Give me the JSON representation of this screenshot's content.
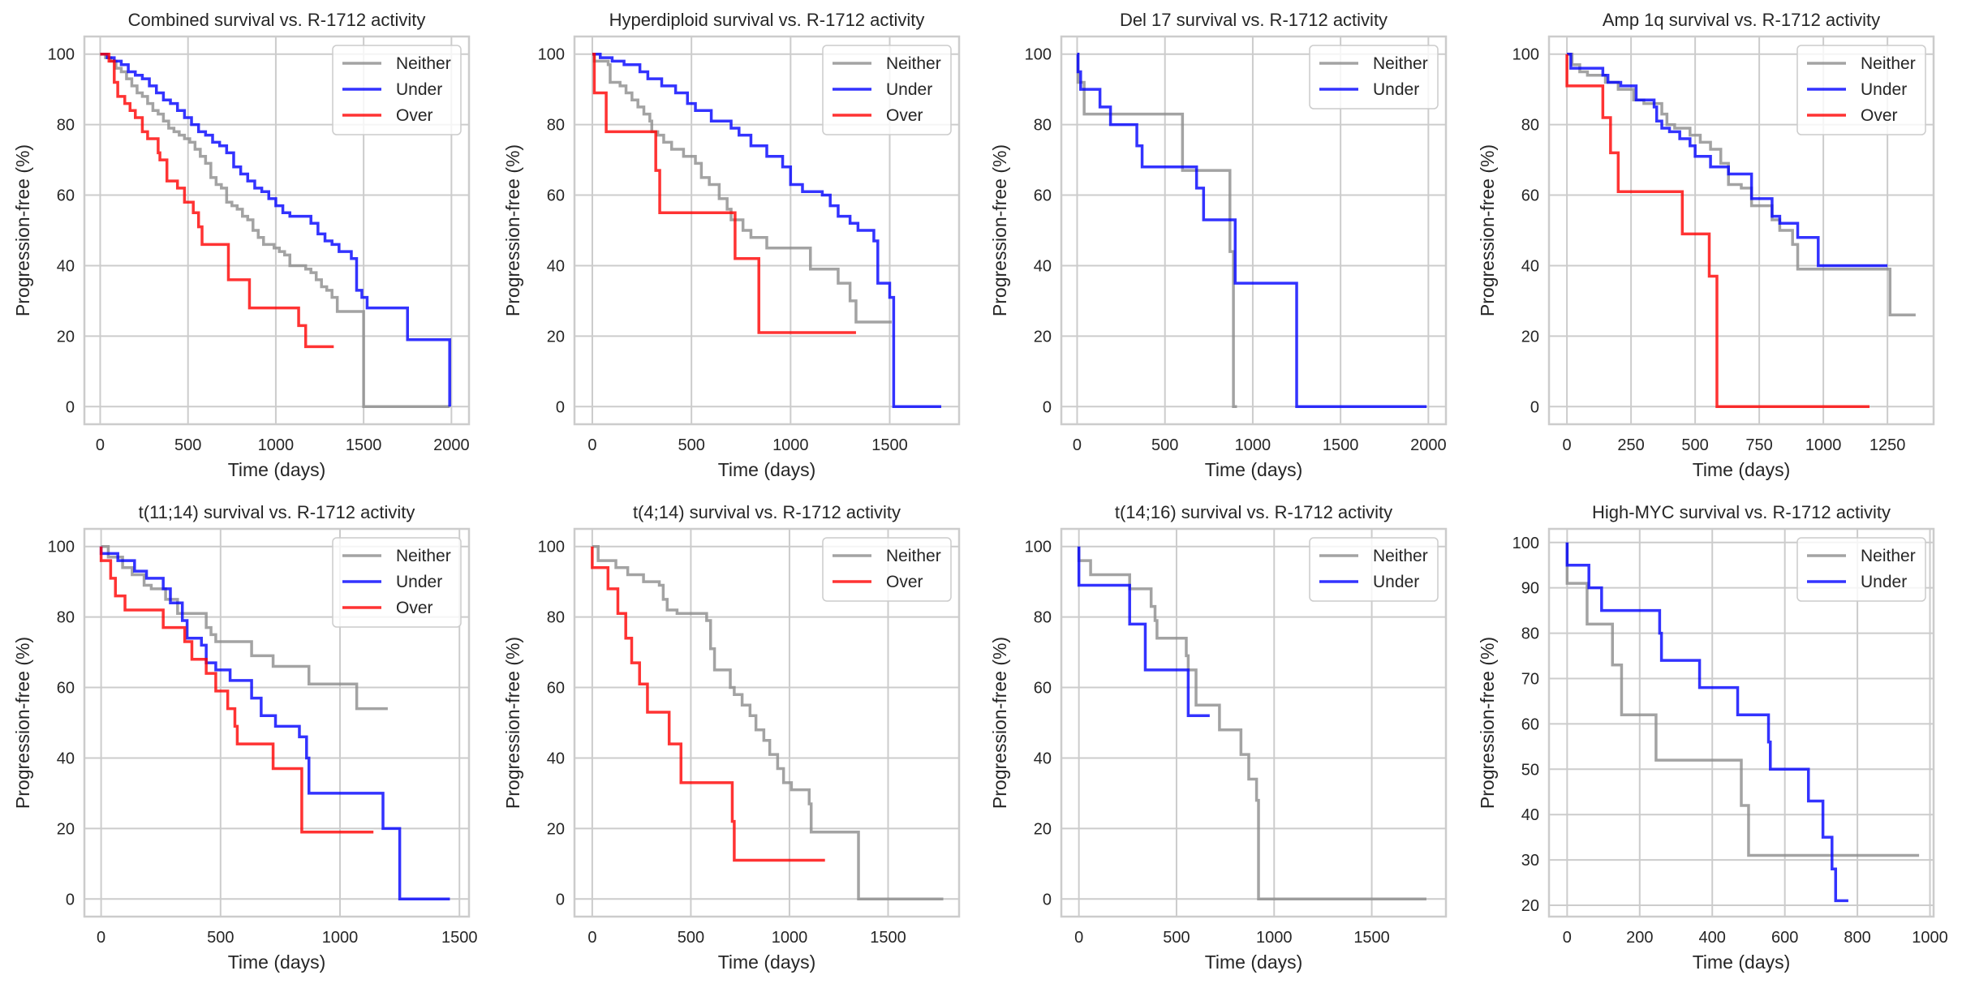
{
  "figure": {
    "colors": {
      "Neither": "#8c8c8c",
      "Under": "#0000ff",
      "Over": "#ff0000"
    }
  },
  "chart_data": [
    {
      "type": "line",
      "step": true,
      "title": "Combined survival vs. R-1712 activity",
      "xlabel": "Time (days)",
      "ylabel": "Progression-free (%)",
      "xlim": [
        -90,
        2100
      ],
      "ylim": [
        -5,
        105
      ],
      "xticks": [
        0,
        500,
        1000,
        1500,
        2000
      ],
      "yticks": [
        0,
        20,
        40,
        60,
        80,
        100
      ],
      "grid": true,
      "legend": "top-right",
      "series": [
        {
          "name": "Neither",
          "x": [
            0,
            30,
            60,
            90,
            120,
            150,
            180,
            210,
            240,
            270,
            300,
            330,
            360,
            390,
            420,
            450,
            480,
            510,
            540,
            570,
            600,
            630,
            660,
            690,
            720,
            750,
            780,
            810,
            840,
            870,
            900,
            930,
            960,
            990,
            1020,
            1050,
            1080,
            1110,
            1140,
            1170,
            1200,
            1230,
            1260,
            1290,
            1320,
            1350,
            1500,
            1990
          ],
          "y": [
            100,
            99,
            98,
            96,
            95,
            93,
            91,
            89,
            88,
            86,
            84,
            83,
            81,
            79,
            78,
            77,
            76,
            75,
            73,
            71,
            69,
            65,
            63,
            62,
            58,
            57,
            56,
            54,
            53,
            50,
            48,
            46,
            46,
            45,
            44,
            43,
            40,
            40,
            40,
            39,
            38,
            36,
            34,
            33,
            31,
            27,
            0,
            0
          ]
        },
        {
          "name": "Under",
          "x": [
            0,
            40,
            80,
            120,
            160,
            200,
            240,
            280,
            320,
            360,
            400,
            440,
            480,
            520,
            560,
            600,
            640,
            680,
            720,
            760,
            800,
            840,
            880,
            920,
            960,
            1000,
            1040,
            1080,
            1120,
            1160,
            1200,
            1240,
            1280,
            1320,
            1360,
            1400,
            1430,
            1460,
            1490,
            1520,
            1750,
            1990
          ],
          "y": [
            100,
            99,
            98,
            97,
            95,
            94,
            93,
            91,
            89,
            87,
            86,
            84,
            82,
            80,
            78,
            77,
            75,
            74,
            72,
            68,
            66,
            64,
            62,
            61,
            59,
            57,
            55,
            54,
            54,
            54,
            52,
            49,
            47,
            46,
            44,
            44,
            42,
            33,
            31,
            28,
            19,
            0
          ]
        },
        {
          "name": "Over",
          "x": [
            0,
            50,
            80,
            100,
            140,
            170,
            200,
            240,
            270,
            330,
            340,
            380,
            440,
            480,
            530,
            560,
            580,
            720,
            730,
            840,
            850,
            1130,
            1170,
            1330
          ],
          "y": [
            100,
            98,
            92,
            88,
            86,
            84,
            82,
            78,
            76,
            72,
            70,
            64,
            62,
            58,
            55,
            51,
            46,
            46,
            36,
            36,
            28,
            23,
            17,
            17
          ]
        }
      ]
    },
    {
      "type": "line",
      "step": true,
      "title": "Hyperdiploid survival vs. R-1712 activity",
      "xlabel": "Time (days)",
      "ylabel": "Progression-free (%)",
      "xlim": [
        -90,
        1850
      ],
      "ylim": [
        -5,
        105
      ],
      "xticks": [
        0,
        500,
        1000,
        1500
      ],
      "yticks": [
        0,
        20,
        40,
        60,
        80,
        100
      ],
      "grid": true,
      "legend": "top-right",
      "series": [
        {
          "name": "Neither",
          "x": [
            0,
            10,
            80,
            90,
            140,
            170,
            200,
            230,
            260,
            290,
            300,
            330,
            360,
            400,
            460,
            520,
            550,
            590,
            640,
            680,
            700,
            760,
            800,
            880,
            1100,
            1240,
            1300,
            1330,
            1510
          ],
          "y": [
            100,
            98,
            97,
            92,
            91,
            89,
            87,
            85,
            83,
            81,
            78,
            77,
            75,
            73,
            71,
            69,
            65,
            63,
            59,
            56,
            53,
            50,
            48,
            45,
            39,
            35,
            30,
            24,
            24
          ]
        },
        {
          "name": "Under",
          "x": [
            0,
            40,
            100,
            160,
            240,
            280,
            350,
            420,
            480,
            520,
            600,
            700,
            740,
            800,
            880,
            960,
            1000,
            1060,
            1160,
            1200,
            1240,
            1300,
            1340,
            1420,
            1440,
            1500,
            1520,
            1760
          ],
          "y": [
            100,
            99,
            98,
            97,
            95,
            93,
            91,
            89,
            86,
            84,
            81,
            79,
            77,
            74,
            71,
            68,
            63,
            61,
            60,
            57,
            54,
            52,
            50,
            47,
            35,
            31,
            0,
            0
          ]
        },
        {
          "name": "Over",
          "x": [
            0,
            10,
            70,
            320,
            340,
            720,
            840,
            1330
          ],
          "y": [
            100,
            89,
            78,
            67,
            55,
            42,
            21,
            21
          ]
        }
      ]
    },
    {
      "type": "line",
      "step": true,
      "title": "Del 17 survival vs. R-1712 activity",
      "xlabel": "Time (days)",
      "ylabel": "Progression-free (%)",
      "xlim": [
        -90,
        2100
      ],
      "ylim": [
        -5,
        105
      ],
      "xticks": [
        0,
        500,
        1000,
        1500,
        2000
      ],
      "yticks": [
        0,
        20,
        40,
        60,
        80,
        100
      ],
      "grid": true,
      "legend": "top-right",
      "series": [
        {
          "name": "Neither",
          "x": [
            0,
            5,
            40,
            600,
            870,
            890,
            910
          ],
          "y": [
            100,
            92,
            83,
            67,
            44,
            0,
            0
          ]
        },
        {
          "name": "Under",
          "x": [
            0,
            5,
            20,
            130,
            190,
            340,
            370,
            680,
            720,
            890,
            900,
            1250,
            1990
          ],
          "y": [
            100,
            95,
            90,
            85,
            80,
            74,
            68,
            62,
            53,
            53,
            35,
            0,
            0
          ]
        }
      ]
    },
    {
      "type": "line",
      "step": true,
      "title": "Amp 1q survival vs. R-1712 activity",
      "xlabel": "Time (days)",
      "ylabel": "Progression-free (%)",
      "xlim": [
        -70,
        1430
      ],
      "ylim": [
        -5,
        105
      ],
      "xticks": [
        0,
        250,
        500,
        750,
        1000,
        1250
      ],
      "yticks": [
        0,
        20,
        40,
        60,
        80,
        100
      ],
      "grid": true,
      "legend": "top-right",
      "series": [
        {
          "name": "Neither",
          "x": [
            0,
            20,
            50,
            80,
            150,
            200,
            260,
            300,
            370,
            390,
            420,
            480,
            520,
            560,
            600,
            630,
            680,
            720,
            800,
            830,
            880,
            900,
            1260,
            1360
          ],
          "y": [
            100,
            97,
            95,
            94,
            92,
            90,
            87,
            86,
            83,
            80,
            79,
            77,
            75,
            73,
            69,
            63,
            62,
            57,
            53,
            50,
            46,
            39,
            26,
            26
          ]
        },
        {
          "name": "Under",
          "x": [
            0,
            15,
            140,
            160,
            210,
            270,
            340,
            350,
            370,
            400,
            440,
            480,
            500,
            560,
            630,
            720,
            800,
            830,
            900,
            980,
            1250
          ],
          "y": [
            100,
            96,
            94,
            92,
            91,
            87,
            85,
            81,
            79,
            78,
            76,
            74,
            71,
            68,
            66,
            59,
            54,
            52,
            48,
            40,
            40
          ]
        },
        {
          "name": "Over",
          "x": [
            0,
            140,
            170,
            200,
            450,
            555,
            585,
            1180
          ],
          "y": [
            91,
            82,
            72,
            61,
            49,
            37,
            0,
            0
          ]
        }
      ]
    },
    {
      "type": "line",
      "step": true,
      "title": "t(11;14) survival vs. R-1712 activity",
      "xlabel": "Time (days)",
      "ylabel": "Progression-free (%)",
      "xlim": [
        -70,
        1540
      ],
      "ylim": [
        -5,
        105
      ],
      "xticks": [
        0,
        500,
        1000,
        1500
      ],
      "yticks": [
        0,
        20,
        40,
        60,
        80,
        100
      ],
      "grid": true,
      "legend": "top-right",
      "series": [
        {
          "name": "Neither",
          "x": [
            0,
            30,
            90,
            130,
            180,
            210,
            270,
            320,
            440,
            460,
            480,
            630,
            720,
            870,
            1070,
            1200
          ],
          "y": [
            100,
            97,
            94,
            92,
            89,
            88,
            85,
            81,
            77,
            75,
            73,
            69,
            66,
            61,
            54,
            54
          ]
        },
        {
          "name": "Under",
          "x": [
            0,
            70,
            140,
            190,
            260,
            290,
            340,
            360,
            420,
            440,
            480,
            540,
            630,
            670,
            730,
            830,
            860,
            870,
            1180,
            1250,
            1460
          ],
          "y": [
            98,
            96,
            93,
            91,
            88,
            84,
            79,
            74,
            72,
            67,
            65,
            62,
            57,
            52,
            49,
            46,
            40,
            30,
            20,
            0,
            0
          ]
        },
        {
          "name": "Over",
          "x": [
            0,
            40,
            60,
            100,
            260,
            350,
            380,
            440,
            480,
            530,
            560,
            570,
            720,
            840,
            1140
          ],
          "y": [
            96,
            91,
            86,
            82,
            77,
            73,
            68,
            64,
            59,
            54,
            49,
            44,
            37,
            19,
            19
          ]
        }
      ]
    },
    {
      "type": "line",
      "step": true,
      "title": "t(4;14) survival vs. R-1712 activity",
      "xlabel": "Time (days)",
      "ylabel": "Progression-free (%)",
      "xlim": [
        -90,
        1860
      ],
      "ylim": [
        -5,
        105
      ],
      "xticks": [
        0,
        500,
        1000,
        1500
      ],
      "yticks": [
        0,
        20,
        40,
        60,
        80,
        100
      ],
      "grid": true,
      "legend": "top-right",
      "series": [
        {
          "name": "Neither",
          "x": [
            0,
            30,
            120,
            180,
            260,
            340,
            360,
            380,
            430,
            580,
            600,
            620,
            640,
            700,
            720,
            760,
            800,
            830,
            870,
            900,
            940,
            970,
            1010,
            1100,
            1110,
            1350,
            1780
          ],
          "y": [
            100,
            96,
            94,
            92,
            90,
            89,
            85,
            82,
            81,
            79,
            71,
            65,
            65,
            60,
            58,
            55,
            52,
            48,
            45,
            41,
            37,
            33,
            31,
            27,
            19,
            0,
            0
          ]
        },
        {
          "name": "Over",
          "x": [
            0,
            80,
            130,
            170,
            200,
            240,
            280,
            390,
            450,
            710,
            720,
            1180
          ],
          "y": [
            94,
            88,
            81,
            74,
            67,
            61,
            53,
            44,
            33,
            22,
            11,
            11
          ]
        }
      ]
    },
    {
      "type": "line",
      "step": true,
      "title": "t(14;16) survival vs. R-1712 activity",
      "xlabel": "Time (days)",
      "ylabel": "Progression-free (%)",
      "xlim": [
        -90,
        1880
      ],
      "ylim": [
        -5,
        105
      ],
      "xticks": [
        0,
        500,
        1000,
        1500
      ],
      "yticks": [
        0,
        20,
        40,
        60,
        80,
        100
      ],
      "grid": true,
      "legend": "top-right",
      "series": [
        {
          "name": "Neither",
          "x": [
            0,
            60,
            260,
            370,
            390,
            400,
            550,
            560,
            600,
            720,
            830,
            870,
            910,
            920,
            1780
          ],
          "y": [
            96,
            92,
            88,
            83,
            79,
            74,
            69,
            65,
            55,
            48,
            41,
            34,
            28,
            0,
            0
          ]
        },
        {
          "name": "Under",
          "x": [
            0,
            260,
            340,
            550,
            560,
            670
          ],
          "y": [
            89,
            78,
            65,
            65,
            52,
            52
          ]
        }
      ]
    },
    {
      "type": "line",
      "step": true,
      "title": "High-MYC survival vs. R-1712 activity",
      "xlabel": "Time (days)",
      "ylabel": "Progression-free (%)",
      "xlim": [
        -50,
        1010
      ],
      "ylim": [
        17.5,
        103
      ],
      "xticks": [
        0,
        200,
        400,
        600,
        800,
        1000
      ],
      "yticks": [
        20,
        30,
        40,
        50,
        60,
        70,
        80,
        90,
        100
      ],
      "grid": true,
      "legend": "top-right",
      "series": [
        {
          "name": "Neither",
          "x": [
            0,
            55,
            125,
            150,
            245,
            480,
            500,
            970
          ],
          "y": [
            91,
            82,
            73,
            62,
            52,
            42,
            31,
            31
          ]
        },
        {
          "name": "Under",
          "x": [
            0,
            60,
            95,
            255,
            260,
            365,
            470,
            555,
            560,
            665,
            705,
            730,
            740,
            775
          ],
          "y": [
            95,
            90,
            85,
            80,
            74,
            68,
            62,
            56,
            50,
            43,
            35,
            28,
            21,
            21
          ]
        }
      ]
    }
  ]
}
